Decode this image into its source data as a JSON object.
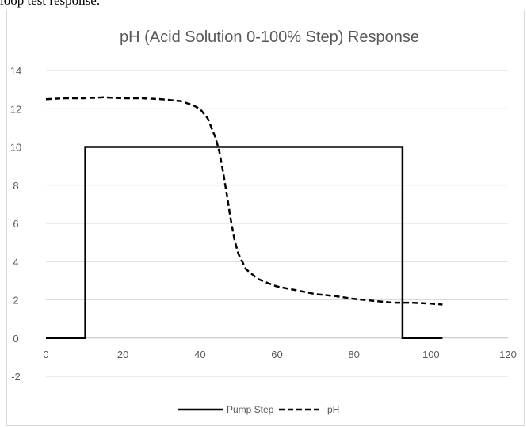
{
  "caption_fragment": "loop test response.",
  "chart_data": {
    "type": "line",
    "title": "pH (Acid Solution 0-100% Step) Response",
    "xlabel": "",
    "ylabel": "",
    "xlim": [
      0,
      120
    ],
    "ylim": [
      -2,
      14
    ],
    "x_ticks": [
      "0",
      "20",
      "40",
      "60",
      "80",
      "100",
      "120"
    ],
    "y_ticks": [
      "-2",
      "0",
      "2",
      "4",
      "6",
      "8",
      "10",
      "12",
      "14"
    ],
    "grid": "horizontal",
    "legend_position": "bottom",
    "series": [
      {
        "name": "Pump Step",
        "style": "solid",
        "color": "#000000",
        "x": [
          0,
          10.2,
          10.2,
          92.6,
          92.6,
          103
        ],
        "y": [
          0,
          0,
          10,
          10,
          0,
          0
        ]
      },
      {
        "name": "pH",
        "style": "dashed",
        "color": "#000000",
        "x": [
          0,
          5,
          10,
          15,
          20,
          25,
          30,
          35,
          38,
          40,
          42,
          43,
          44,
          45,
          46,
          47,
          48,
          49,
          50,
          52,
          55,
          58,
          60,
          65,
          70,
          75,
          80,
          85,
          90,
          95,
          100,
          103
        ],
        "y": [
          12.5,
          12.55,
          12.55,
          12.6,
          12.55,
          12.55,
          12.5,
          12.4,
          12.2,
          12.0,
          11.5,
          11.0,
          10.5,
          9.8,
          8.7,
          7.5,
          6.2,
          5.1,
          4.4,
          3.6,
          3.1,
          2.85,
          2.7,
          2.5,
          2.3,
          2.2,
          2.05,
          1.95,
          1.85,
          1.85,
          1.8,
          1.75
        ]
      }
    ]
  }
}
